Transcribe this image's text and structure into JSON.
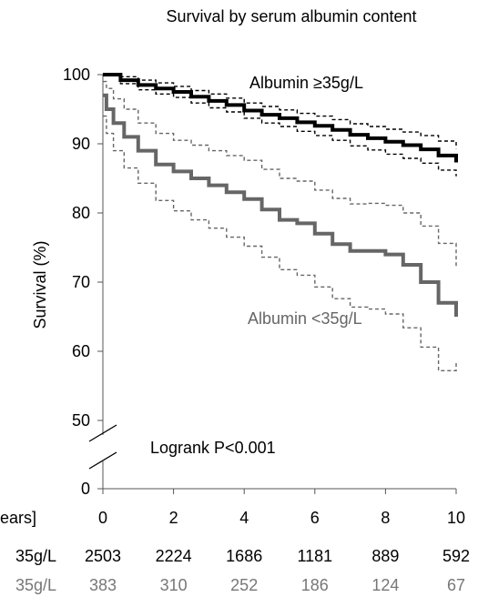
{
  "chart_data": {
    "type": "line",
    "title": "Survival by serum albumin content",
    "xlabel": "[years]",
    "ylabel": "Survival (%)",
    "xlim": [
      0,
      10
    ],
    "ylim": [
      50,
      100
    ],
    "y_axis_break": true,
    "grid": false,
    "legend": "inline labels",
    "x_ticks": [
      "0",
      "2",
      "4",
      "6",
      "8",
      "10"
    ],
    "y_ticks": [
      "0",
      "50",
      "60",
      "70",
      "80",
      "90",
      "100"
    ],
    "annotation": "Logrank P<0.001",
    "series": [
      {
        "name": "Albumin ≥35g/L",
        "color": "#000000",
        "x": [
          0,
          0.5,
          1,
          1.5,
          2,
          2.5,
          3,
          3.5,
          4,
          4.5,
          5,
          5.5,
          6,
          6.5,
          7,
          7.5,
          8,
          8.5,
          9,
          9.5,
          10
        ],
        "y": [
          100,
          99.2,
          98.5,
          98,
          97.5,
          96.8,
          96.2,
          95.6,
          94.8,
          94.2,
          93.7,
          93.1,
          92.6,
          92,
          91.3,
          90.8,
          90.3,
          89.8,
          89.2,
          88.3,
          87.3
        ],
        "ci_upper": [
          100,
          99.7,
          99.2,
          98.8,
          98.3,
          97.7,
          97.2,
          96.6,
          95.9,
          95.4,
          94.9,
          94.4,
          94,
          93.5,
          92.9,
          92.5,
          92.1,
          91.7,
          91.2,
          90.4,
          89.3
        ],
        "ci_lower": [
          100,
          98.7,
          97.8,
          97.2,
          96.7,
          95.9,
          95.2,
          94.6,
          93.7,
          93,
          92.5,
          91.8,
          91.2,
          90.5,
          89.7,
          89.1,
          88.5,
          87.9,
          87.2,
          86.2,
          85.3
        ]
      },
      {
        "name": "Albumin <35g/L",
        "color": "#666666",
        "x": [
          0,
          0.1,
          0.3,
          0.6,
          1,
          1.5,
          2,
          2.5,
          3,
          3.5,
          4,
          4.5,
          5,
          5.5,
          6,
          6.5,
          7,
          7.5,
          8,
          8.5,
          9,
          9.5,
          10
        ],
        "y": [
          97,
          95,
          93,
          91,
          89,
          87,
          86,
          85,
          84,
          83,
          82,
          80.5,
          79,
          78.5,
          77,
          75.5,
          74.5,
          74.5,
          74,
          72.5,
          70,
          67,
          65
        ],
        "ci_upper": [
          99,
          98,
          96.5,
          95,
          93,
          91.5,
          90.5,
          89.8,
          89,
          88.3,
          87.6,
          86.3,
          85,
          84.6,
          83.3,
          82.1,
          81.3,
          81.4,
          81.1,
          80,
          78.1,
          75.6,
          72
        ],
        "ci_lower": [
          94,
          91.5,
          89,
          86.5,
          84.3,
          81.8,
          80.3,
          79,
          77.8,
          76.5,
          75.2,
          73.6,
          71.8,
          71,
          69.3,
          67.6,
          66.4,
          66.1,
          65.4,
          63.4,
          60.6,
          57.2,
          58.5
        ]
      }
    ],
    "risk_table": {
      "years": [
        "0",
        "2",
        "4",
        "6",
        "8",
        "10"
      ],
      "rows": [
        {
          "label": "35g/L",
          "color": "#000000",
          "values": [
            "2503",
            "2224",
            "1686",
            "1181",
            "889",
            "592"
          ]
        },
        {
          "label": "35g/L",
          "color": "#777777",
          "values": [
            "383",
            "310",
            "252",
            "186",
            "124",
            "67"
          ]
        }
      ]
    }
  }
}
